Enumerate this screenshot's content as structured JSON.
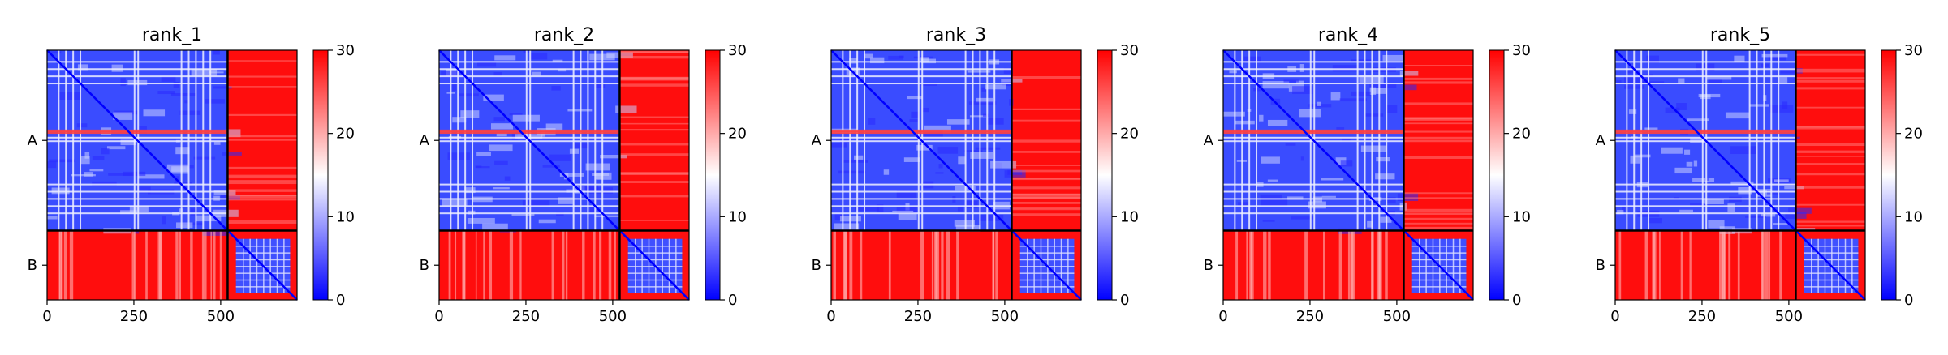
{
  "chart_data": [
    {
      "type": "heatmap",
      "title": "rank_1",
      "xlim": [
        0,
        720
      ],
      "x_ticks": [
        0,
        250,
        500
      ],
      "y_ticks": [
        "A",
        "B"
      ],
      "chain_boundary": 520,
      "colorbar": {
        "min": 0,
        "max": 30,
        "ticks": [
          0,
          10,
          20,
          30
        ],
        "colors": [
          "#0000ff",
          "#ffffff",
          "#ff0000"
        ]
      }
    },
    {
      "type": "heatmap",
      "title": "rank_2",
      "xlim": [
        0,
        720
      ],
      "x_ticks": [
        0,
        250,
        500
      ],
      "y_ticks": [
        "A",
        "B"
      ],
      "chain_boundary": 520,
      "colorbar": {
        "min": 0,
        "max": 30,
        "ticks": [
          0,
          10,
          20,
          30
        ],
        "colors": [
          "#0000ff",
          "#ffffff",
          "#ff0000"
        ]
      }
    },
    {
      "type": "heatmap",
      "title": "rank_3",
      "xlim": [
        0,
        720
      ],
      "x_ticks": [
        0,
        250,
        500
      ],
      "y_ticks": [
        "A",
        "B"
      ],
      "chain_boundary": 520,
      "colorbar": {
        "min": 0,
        "max": 30,
        "ticks": [
          0,
          10,
          20,
          30
        ],
        "colors": [
          "#0000ff",
          "#ffffff",
          "#ff0000"
        ]
      }
    },
    {
      "type": "heatmap",
      "title": "rank_4",
      "xlim": [
        0,
        720
      ],
      "x_ticks": [
        0,
        250,
        500
      ],
      "y_ticks": [
        "A",
        "B"
      ],
      "chain_boundary": 520,
      "colorbar": {
        "min": 0,
        "max": 30,
        "ticks": [
          0,
          10,
          20,
          30
        ],
        "colors": [
          "#0000ff",
          "#ffffff",
          "#ff0000"
        ]
      }
    },
    {
      "type": "heatmap",
      "title": "rank_5",
      "xlim": [
        0,
        720
      ],
      "x_ticks": [
        0,
        250,
        500
      ],
      "y_ticks": [
        "A",
        "B"
      ],
      "chain_boundary": 520,
      "colorbar": {
        "min": 0,
        "max": 30,
        "ticks": [
          0,
          10,
          20,
          30
        ],
        "colors": [
          "#0000ff",
          "#ffffff",
          "#ff0000"
        ]
      }
    }
  ]
}
